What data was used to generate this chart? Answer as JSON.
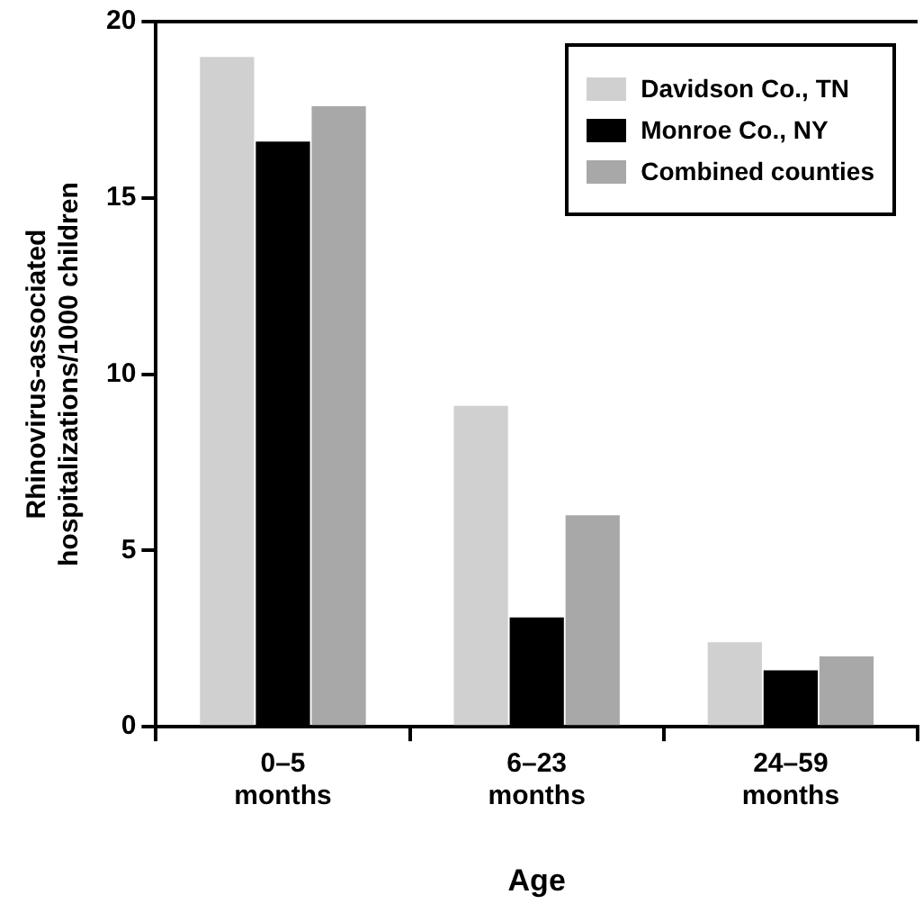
{
  "chart_data": {
    "type": "bar",
    "xlabel": "Age",
    "ylabel": "Rhinovirus-associated hospitalizations/1000 children",
    "categories": [
      "0–5 months",
      "6–23 months",
      "24–59 months"
    ],
    "series": [
      {
        "name": "Davidson Co., TN",
        "color": "#d0d0d0",
        "values": [
          19.0,
          9.1,
          2.4
        ]
      },
      {
        "name": "Monroe Co., NY",
        "color": "#000000",
        "values": [
          16.6,
          3.1,
          1.6
        ]
      },
      {
        "name": "Combined counties",
        "color": "#a8a8a8",
        "values": [
          17.6,
          6.0,
          2.0
        ]
      }
    ],
    "ylim": [
      0,
      20
    ],
    "yticks": [
      0,
      5,
      10,
      15,
      20
    ],
    "grid": false,
    "legend": "top right"
  }
}
